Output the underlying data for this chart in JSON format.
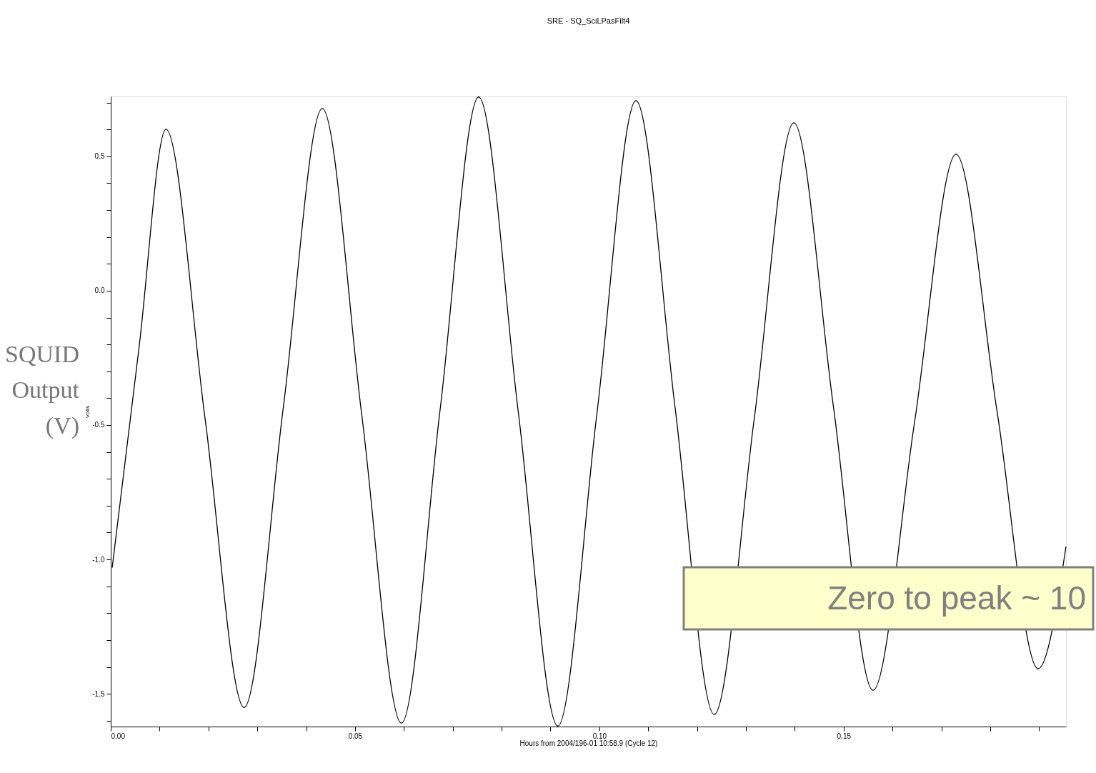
{
  "chart_data": {
    "type": "line",
    "title": "SRE - SQ_SciLPasFilt4",
    "xlabel": "Hours from 2004/196-01 10:58.9 (Cycle    12)",
    "ylabel": "Volts",
    "annotations": [
      "SQUID Output (V)",
      "Zero to peak ~ 10"
    ],
    "x": [
      0.0003,
      0.0058,
      0.0113,
      0.0193,
      0.0273,
      0.0353,
      0.0433,
      0.0514,
      0.0595,
      0.0674,
      0.0753,
      0.0834,
      0.0915,
      0.0995,
      0.1075,
      0.1155,
      0.1235,
      0.1317,
      0.1398,
      0.1479,
      0.156,
      0.1645,
      0.173,
      0.1814,
      0.1898,
      0.1955
    ],
    "series": [
      {
        "color": "#000000",
        "values": [
          -1.03,
          -0.21,
          0.601,
          -0.475,
          -1.551,
          -0.437,
          0.678,
          -0.466,
          -1.609,
          -0.444,
          0.721,
          -0.45,
          -1.62,
          -0.457,
          0.707,
          -0.435,
          -1.577,
          -0.476,
          0.625,
          -0.431,
          -1.487,
          -0.49,
          0.508,
          -0.45,
          -1.407,
          -0.952
        ]
      }
    ],
    "xlim": [
      0,
      0.1955
    ],
    "ylim": [
      -1.622,
      0.723
    ],
    "xticks": [
      {
        "value": 0,
        "label": "0.00"
      },
      {
        "value": 0.01,
        "label": null
      },
      {
        "value": 0.02,
        "label": null
      },
      {
        "value": 0.03,
        "label": null
      },
      {
        "value": 0.04,
        "label": null
      },
      {
        "value": 0.05,
        "label": "0.05"
      },
      {
        "value": 0.06,
        "label": null
      },
      {
        "value": 0.07,
        "label": null
      },
      {
        "value": 0.08,
        "label": null
      },
      {
        "value": 0.09,
        "label": null
      },
      {
        "value": 0.1,
        "label": "0.10"
      },
      {
        "value": 0.11,
        "label": null
      },
      {
        "value": 0.12,
        "label": null
      },
      {
        "value": 0.13,
        "label": null
      },
      {
        "value": 0.14,
        "label": null
      },
      {
        "value": 0.15,
        "label": "0.15"
      },
      {
        "value": 0.16,
        "label": null
      },
      {
        "value": 0.17,
        "label": null
      },
      {
        "value": 0.18,
        "label": null
      },
      {
        "value": 0.19,
        "label": null
      }
    ],
    "yticks": [
      {
        "value": -1.6,
        "label": null
      },
      {
        "value": -1.5,
        "label": "-1.5"
      },
      {
        "value": -1.4,
        "label": null
      },
      {
        "value": -1.3,
        "label": null
      },
      {
        "value": -1.2,
        "label": null
      },
      {
        "value": -1.1,
        "label": null
      },
      {
        "value": -1.0,
        "label": "-1.0"
      },
      {
        "value": -0.9,
        "label": null
      },
      {
        "value": -0.8,
        "label": null
      },
      {
        "value": -0.7,
        "label": null
      },
      {
        "value": -0.6,
        "label": null
      },
      {
        "value": -0.5,
        "label": "-0.5"
      },
      {
        "value": -0.4,
        "label": null
      },
      {
        "value": -0.3,
        "label": null
      },
      {
        "value": -0.2,
        "label": null
      },
      {
        "value": -0.1,
        "label": null
      },
      {
        "value": 0.0,
        "label": "0.0"
      },
      {
        "value": 0.1,
        "label": null
      },
      {
        "value": 0.2,
        "label": null
      },
      {
        "value": 0.3,
        "label": null
      },
      {
        "value": 0.4,
        "label": null
      },
      {
        "value": 0.5,
        "label": "0.5"
      },
      {
        "value": 0.6,
        "label": null
      },
      {
        "value": 0.7,
        "label": null
      }
    ],
    "grid": false,
    "marker": "none",
    "line_style": "solid"
  }
}
